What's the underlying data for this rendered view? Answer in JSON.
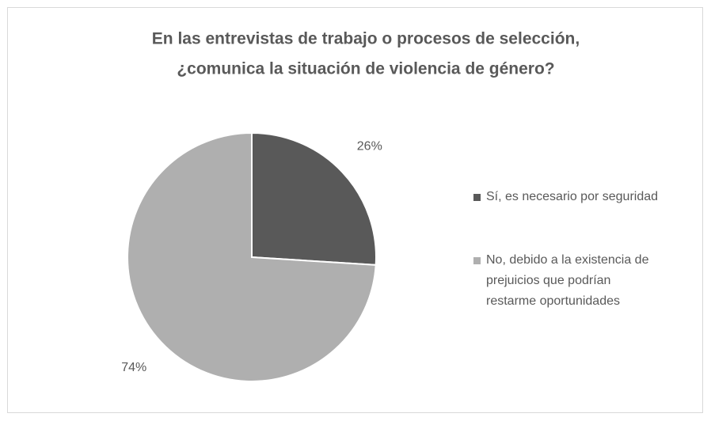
{
  "chart_data": {
    "type": "pie",
    "title": [
      "En las entrevistas de trabajo o procesos de selección,",
      "¿comunica la situación de violencia de género?"
    ],
    "categories": [
      "Sí, es necesario por seguridad",
      "No, debido a la existencia de prejuicios que podrían restarme oportunidades"
    ],
    "values": [
      26,
      74
    ],
    "value_labels": [
      "26%",
      "74%"
    ],
    "colors": [
      "#595959",
      "#afafaf"
    ],
    "legend": "right"
  }
}
